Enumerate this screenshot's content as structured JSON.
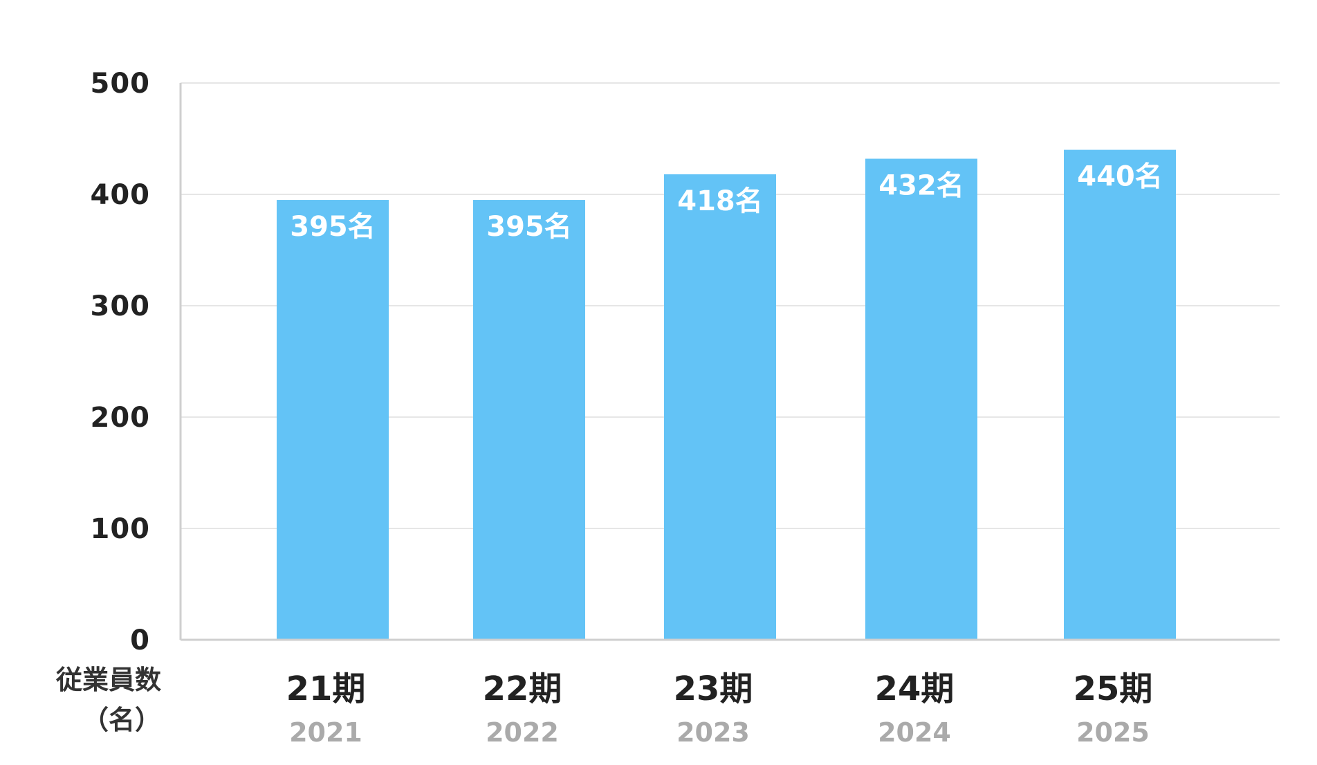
{
  "chart_data": {
    "type": "bar",
    "categories": [
      "21期",
      "22期",
      "23期",
      "24期",
      "25期"
    ],
    "category_years": [
      "2021",
      "2022",
      "2023",
      "2024",
      "2025"
    ],
    "values": [
      395,
      395,
      418,
      432,
      440
    ],
    "data_labels": [
      "395名",
      "395名",
      "418名",
      "432名",
      "440名"
    ],
    "yticks": [
      "0",
      "100",
      "200",
      "300",
      "400",
      "500"
    ],
    "ylim": [
      0,
      500
    ],
    "ylabel": "従業員数（名）",
    "ylabel_lines": [
      "従業員数",
      "（名）"
    ],
    "grid": true,
    "legend": "none",
    "colors": {
      "bar": "#63c3f6",
      "grid": "#e6e6e6",
      "axis": "#cfcfcf"
    }
  }
}
